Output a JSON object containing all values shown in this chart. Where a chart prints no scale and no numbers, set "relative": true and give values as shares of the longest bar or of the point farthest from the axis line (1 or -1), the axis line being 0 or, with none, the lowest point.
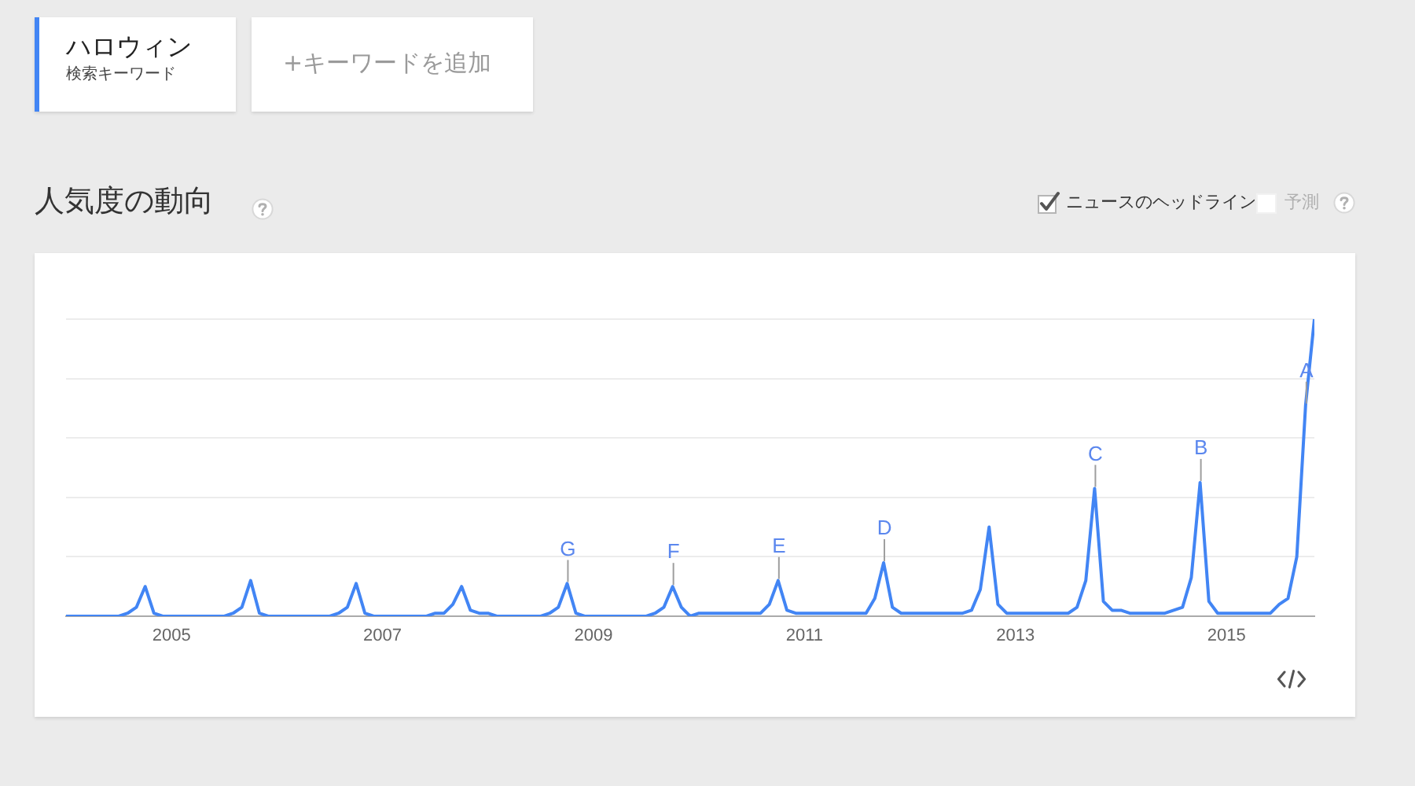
{
  "chart_data": {
    "type": "line",
    "title": "人気度の動向",
    "x": [
      "2004-01",
      "2004-02",
      "2004-03",
      "2004-04",
      "2004-05",
      "2004-06",
      "2004-07",
      "2004-08",
      "2004-09",
      "2004-10",
      "2004-11",
      "2004-12",
      "2005-01",
      "2005-02",
      "2005-03",
      "2005-04",
      "2005-05",
      "2005-06",
      "2005-07",
      "2005-08",
      "2005-09",
      "2005-10",
      "2005-11",
      "2005-12",
      "2006-01",
      "2006-02",
      "2006-03",
      "2006-04",
      "2006-05",
      "2006-06",
      "2006-07",
      "2006-08",
      "2006-09",
      "2006-10",
      "2006-11",
      "2006-12",
      "2007-01",
      "2007-02",
      "2007-03",
      "2007-04",
      "2007-05",
      "2007-06",
      "2007-07",
      "2007-08",
      "2007-09",
      "2007-10",
      "2007-11",
      "2007-12",
      "2008-01",
      "2008-02",
      "2008-03",
      "2008-04",
      "2008-05",
      "2008-06",
      "2008-07",
      "2008-08",
      "2008-09",
      "2008-10",
      "2008-11",
      "2008-12",
      "2009-01",
      "2009-02",
      "2009-03",
      "2009-04",
      "2009-05",
      "2009-06",
      "2009-07",
      "2009-08",
      "2009-09",
      "2009-10",
      "2009-11",
      "2009-12",
      "2010-01",
      "2010-02",
      "2010-03",
      "2010-04",
      "2010-05",
      "2010-06",
      "2010-07",
      "2010-08",
      "2010-09",
      "2010-10",
      "2010-11",
      "2010-12",
      "2011-01",
      "2011-02",
      "2011-03",
      "2011-04",
      "2011-05",
      "2011-06",
      "2011-07",
      "2011-08",
      "2011-09",
      "2011-10",
      "2011-11",
      "2011-12",
      "2012-01",
      "2012-02",
      "2012-03",
      "2012-04",
      "2012-05",
      "2012-06",
      "2012-07",
      "2012-08",
      "2012-09",
      "2012-10",
      "2012-11",
      "2012-12",
      "2013-01",
      "2013-02",
      "2013-03",
      "2013-04",
      "2013-05",
      "2013-06",
      "2013-07",
      "2013-08",
      "2013-09",
      "2013-10",
      "2013-11",
      "2013-12",
      "2014-01",
      "2014-02",
      "2014-03",
      "2014-04",
      "2014-05",
      "2014-06",
      "2014-07",
      "2014-08",
      "2014-09",
      "2014-10",
      "2014-11",
      "2014-12",
      "2015-01",
      "2015-02",
      "2015-03",
      "2015-04",
      "2015-05",
      "2015-06",
      "2015-07",
      "2015-08",
      "2015-09",
      "2015-10",
      "2015-11"
    ],
    "series": [
      {
        "name": "ハロウィン",
        "color": "#4285f4",
        "values": [
          0,
          0,
          0,
          0,
          0,
          0,
          0,
          0.01,
          0.03,
          0.1,
          0.01,
          0,
          0,
          0,
          0,
          0,
          0,
          0,
          0,
          0.01,
          0.03,
          0.12,
          0.01,
          0,
          0,
          0,
          0,
          0,
          0,
          0,
          0,
          0.01,
          0.03,
          0.11,
          0.01,
          0,
          0,
          0,
          0,
          0,
          0,
          0,
          0.01,
          0.01,
          0.04,
          0.1,
          0.02,
          0.01,
          0.01,
          0,
          0,
          0,
          0,
          0,
          0,
          0.01,
          0.03,
          0.11,
          0.01,
          0,
          0,
          0,
          0,
          0,
          0,
          0,
          0,
          0.01,
          0.03,
          0.1,
          0.03,
          0,
          0.01,
          0.01,
          0.01,
          0.01,
          0.01,
          0.01,
          0.01,
          0.01,
          0.04,
          0.12,
          0.02,
          0.01,
          0.01,
          0.01,
          0.01,
          0.01,
          0.01,
          0.01,
          0.01,
          0.01,
          0.06,
          0.18,
          0.03,
          0.01,
          0.01,
          0.01,
          0.01,
          0.01,
          0.01,
          0.01,
          0.01,
          0.02,
          0.09,
          0.3,
          0.04,
          0.01,
          0.01,
          0.01,
          0.01,
          0.01,
          0.01,
          0.01,
          0.01,
          0.03,
          0.12,
          0.43,
          0.05,
          0.02,
          0.02,
          0.01,
          0.01,
          0.01,
          0.01,
          0.01,
          0.02,
          0.03,
          0.13,
          0.45,
          0.05,
          0.01,
          0.01,
          0.01,
          0.01,
          0.01,
          0.01,
          0.01,
          0.04,
          0.06,
          0.2,
          0.71,
          1
        ]
      }
    ],
    "relative": true,
    "xlim": [
      "2004-01",
      "2015-11"
    ],
    "xticks": [
      "2005",
      "2007",
      "2009",
      "2011",
      "2013",
      "2015"
    ],
    "grid": "y",
    "legend": "top left",
    "marker": "none",
    "annotations": [
      "検索キーワード",
      "+キーワードを追加",
      "ニュースのヘッドライン",
      "予測",
      {
        "text": "A",
        "x": "2015-10",
        "y": 0.71
      },
      {
        "text": "B",
        "x": "2014-10",
        "y": 0.45
      },
      {
        "text": "C",
        "x": "2013-10",
        "y": 0.43
      },
      {
        "text": "D",
        "x": "2011-10",
        "y": 0.18
      },
      {
        "text": "E",
        "x": "2010-10",
        "y": 0.12
      },
      {
        "text": "F",
        "x": "2009-10",
        "y": 0.1
      },
      {
        "text": "G",
        "x": "2008-10",
        "y": 0.11
      }
    ]
  }
}
